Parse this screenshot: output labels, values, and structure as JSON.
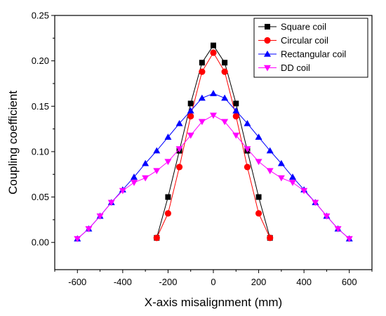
{
  "chart_data": {
    "type": "line",
    "title": "",
    "xlabel": "X-axis misalignment   (mm)",
    "ylabel": "Coupling coefficient",
    "xlim": [
      -700,
      700
    ],
    "ylim": [
      -0.03,
      0.25
    ],
    "xticks": [
      -600,
      -400,
      -200,
      0,
      200,
      400,
      600
    ],
    "xtick_labels": [
      "-600",
      "-400",
      "-200",
      "0",
      "200",
      "400",
      "600"
    ],
    "yticks": [
      0.0,
      0.05,
      0.1,
      0.15,
      0.2,
      0.25
    ],
    "ytick_labels": [
      "0.00",
      "0.05",
      "0.10",
      "0.15",
      "0.20",
      "0.25"
    ],
    "grid": false,
    "legend_position": "top-right",
    "series": [
      {
        "name": "Square coil",
        "color": "#000000",
        "marker": "square",
        "x": [
          -250,
          -200,
          -150,
          -100,
          -50,
          0,
          50,
          100,
          150,
          200,
          250
        ],
        "y": [
          0.005,
          0.05,
          0.101,
          0.153,
          0.198,
          0.217,
          0.198,
          0.153,
          0.101,
          0.05,
          0.005
        ]
      },
      {
        "name": "Circular coil",
        "color": "#ff0000",
        "marker": "circle",
        "x": [
          -250,
          -200,
          -150,
          -100,
          -50,
          0,
          50,
          100,
          150,
          200,
          250
        ],
        "y": [
          0.005,
          0.032,
          0.083,
          0.139,
          0.188,
          0.209,
          0.188,
          0.139,
          0.083,
          0.032,
          0.005
        ]
      },
      {
        "name": "Rectangular coil",
        "color": "#0000ff",
        "marker": "triangle-up",
        "x": [
          -600,
          -550,
          -500,
          -450,
          -400,
          -350,
          -300,
          -250,
          -200,
          -150,
          -100,
          -50,
          0,
          50,
          100,
          150,
          200,
          250,
          300,
          350,
          400,
          450,
          500,
          550,
          600
        ],
        "y": [
          0.004,
          0.015,
          0.029,
          0.044,
          0.058,
          0.072,
          0.087,
          0.101,
          0.116,
          0.131,
          0.145,
          0.159,
          0.164,
          0.159,
          0.145,
          0.131,
          0.116,
          0.101,
          0.087,
          0.072,
          0.058,
          0.044,
          0.029,
          0.015,
          0.004
        ]
      },
      {
        "name": "DD coil",
        "color": "#ff00ff",
        "marker": "triangle-down",
        "x": [
          -600,
          -550,
          -500,
          -450,
          -400,
          -350,
          -300,
          -250,
          -200,
          -150,
          -100,
          -50,
          0,
          50,
          100,
          150,
          200,
          250,
          300,
          350,
          400,
          450,
          500,
          550,
          600
        ],
        "y": [
          0.004,
          0.015,
          0.029,
          0.044,
          0.057,
          0.066,
          0.071,
          0.079,
          0.089,
          0.103,
          0.118,
          0.133,
          0.14,
          0.133,
          0.118,
          0.103,
          0.089,
          0.079,
          0.071,
          0.066,
          0.057,
          0.044,
          0.029,
          0.015,
          0.004
        ]
      }
    ]
  }
}
